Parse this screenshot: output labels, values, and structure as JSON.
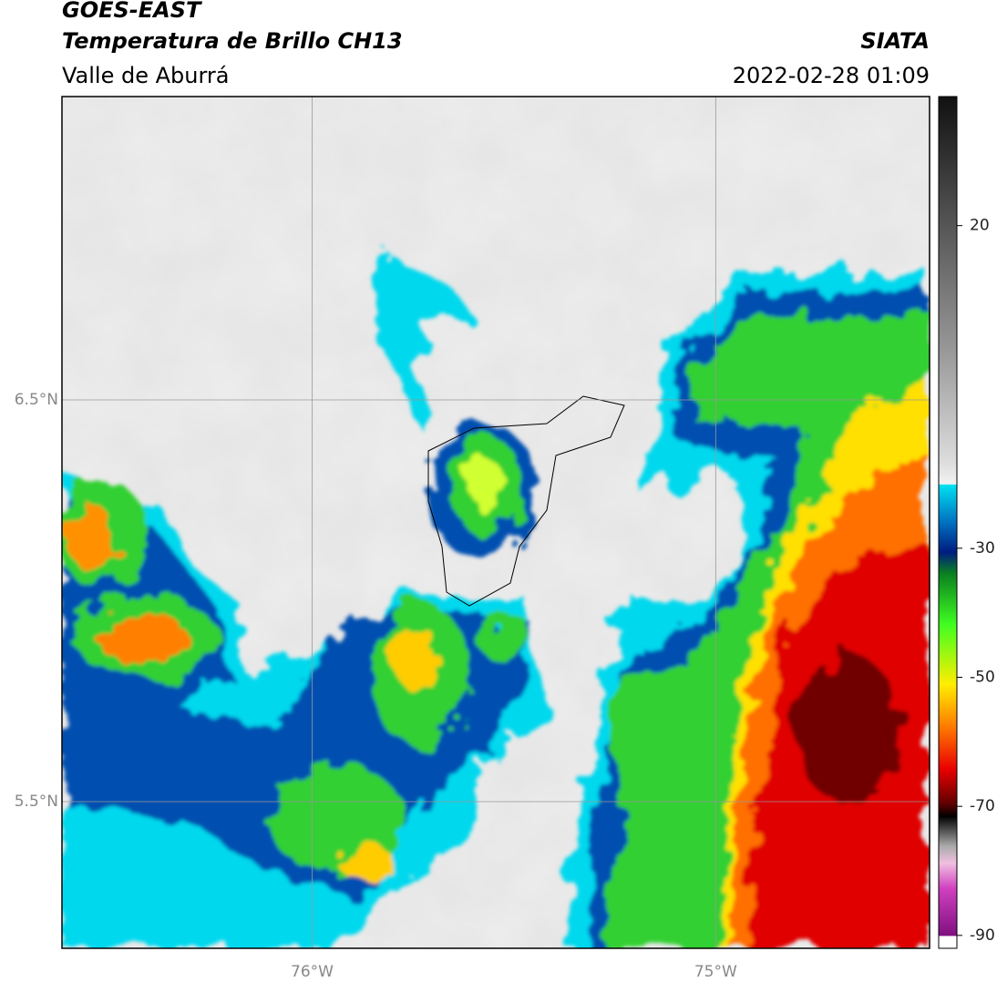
{
  "header": {
    "title": "GOES-EAST",
    "subtitle": "Temperatura de Brillo CH13",
    "region": "Valle de Aburrá",
    "source": "SIATA",
    "datetime": "2022-02-28 01:09"
  },
  "map": {
    "xlim": [
      -76.62,
      -74.47
    ],
    "ylim": [
      5.135,
      7.255
    ],
    "xticks": [
      {
        "value": -76,
        "label": "76°W"
      },
      {
        "value": -75,
        "label": "75°W"
      }
    ],
    "yticks": [
      {
        "value": 6.5,
        "label": "6.5°N"
      },
      {
        "value": 5.5,
        "label": "5.5°N"
      }
    ],
    "grid": true
  },
  "colorbar": {
    "clim": [
      -92,
      40
    ],
    "ticks": [
      20,
      -30,
      -50,
      -70,
      -90
    ]
  }
}
